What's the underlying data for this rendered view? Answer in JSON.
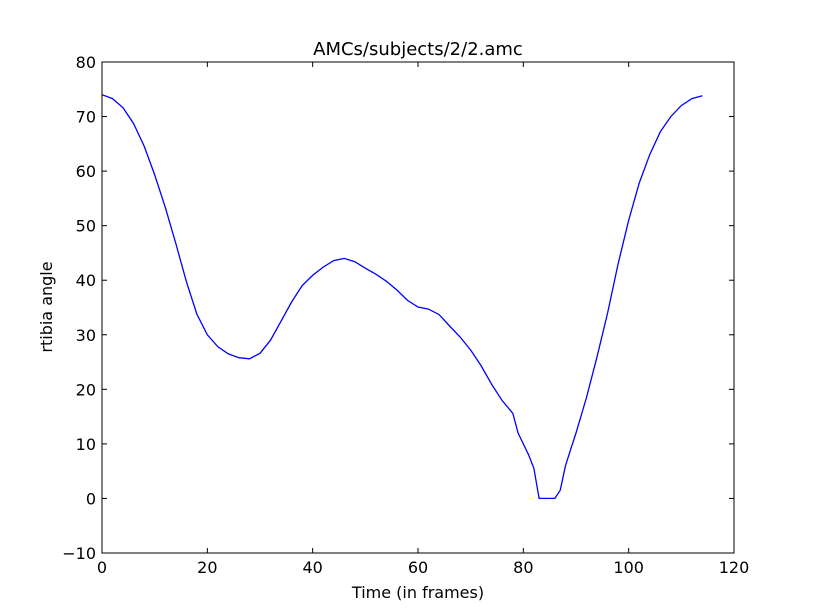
{
  "chart_data": {
    "type": "line",
    "title": "AMCs/subjects/2/2.amc",
    "xlabel": "Time (in frames)",
    "ylabel": "rtibia angle",
    "xlim": [
      0,
      120
    ],
    "ylim": [
      -10,
      80
    ],
    "xticks": [
      0,
      20,
      40,
      60,
      80,
      100,
      120
    ],
    "yticks": [
      -10,
      0,
      10,
      20,
      30,
      40,
      50,
      60,
      70,
      80
    ],
    "xtick_labels": [
      "0",
      "20",
      "40",
      "60",
      "80",
      "100",
      "120"
    ],
    "ytick_labels": [
      "−10",
      "0",
      "10",
      "20",
      "30",
      "40",
      "50",
      "60",
      "70",
      "80"
    ],
    "grid": false,
    "line_color": "#0000ff",
    "x": [
      0,
      2,
      4,
      6,
      8,
      10,
      12,
      14,
      16,
      18,
      20,
      22,
      24,
      26,
      28,
      30,
      32,
      34,
      36,
      38,
      40,
      42,
      44,
      46,
      48,
      50,
      52,
      54,
      56,
      58,
      60,
      62,
      64,
      66,
      68,
      70,
      72,
      74,
      76,
      78,
      79,
      80,
      81,
      82,
      83,
      84,
      85,
      86,
      87,
      88,
      89,
      90,
      92,
      94,
      96,
      98,
      100,
      102,
      104,
      106,
      108,
      110,
      112,
      114
    ],
    "y": [
      74,
      73.3,
      71.6,
      68.7,
      64.6,
      59.3,
      53.4,
      46.8,
      39.8,
      33.8,
      30.0,
      27.8,
      26.5,
      25.8,
      25.6,
      26.6,
      29.0,
      32.5,
      36.0,
      39.0,
      40.9,
      42.4,
      43.6,
      44.0,
      43.4,
      42.2,
      41.1,
      39.8,
      38.2,
      36.3,
      35.1,
      34.7,
      33.7,
      31.6,
      29.6,
      27.2,
      24.3,
      20.9,
      17.9,
      15.6,
      12.0,
      10.0,
      8.0,
      5.5,
      0,
      0,
      0,
      0,
      1.5,
      6.0,
      9.0,
      12.0,
      18.5,
      26.0,
      34.0,
      43.0,
      51.0,
      57.8,
      63.0,
      67.2,
      70.0,
      72.0,
      73.3,
      73.8
    ]
  }
}
